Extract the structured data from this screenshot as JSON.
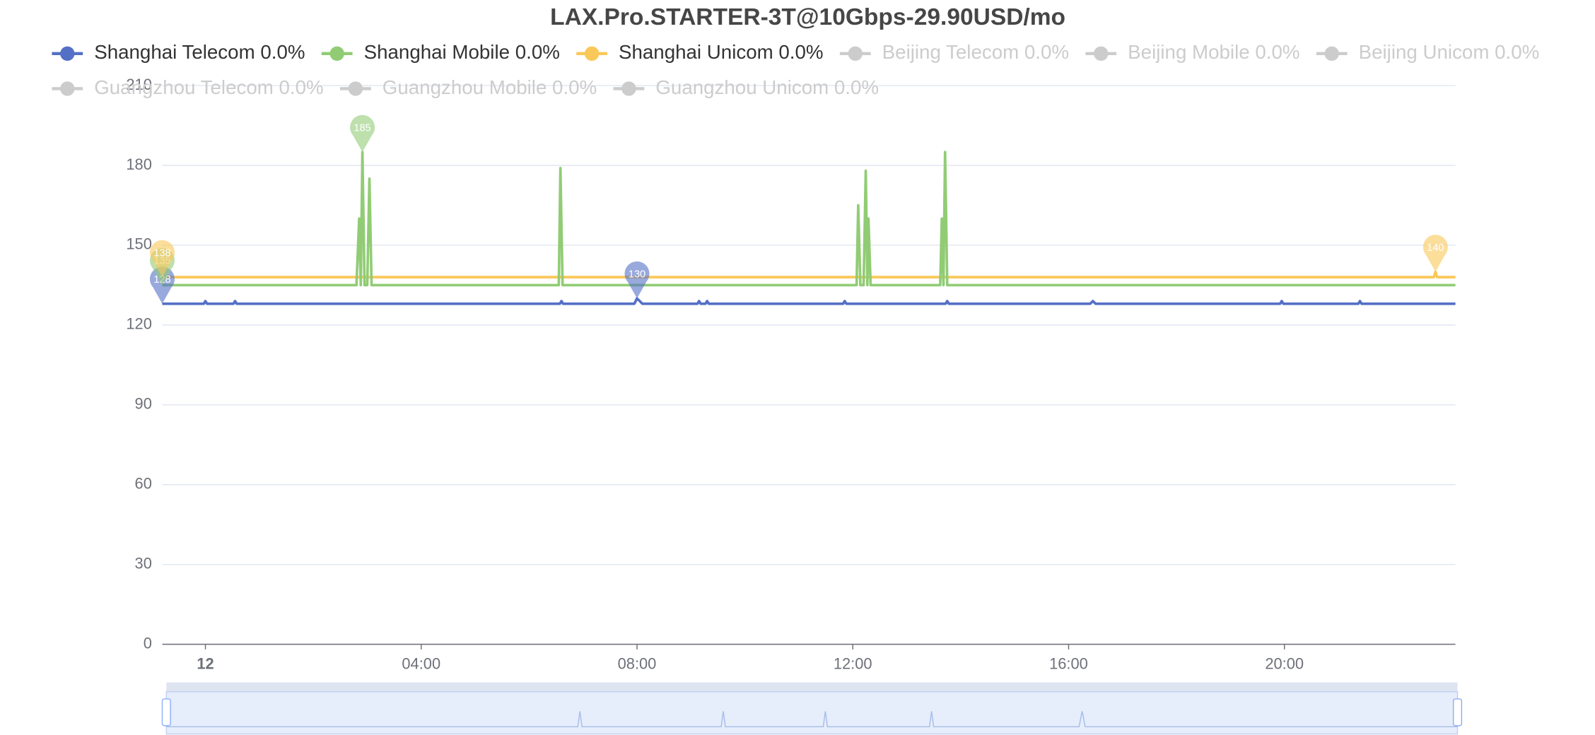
{
  "chart_data": {
    "type": "line",
    "title": "LAX.Pro.STARTER-3T@10Gbps-29.90USD/mo",
    "xlim": [
      -0.8,
      23.17
    ],
    "xticks": [
      {
        "value": 0,
        "label": "12"
      },
      {
        "value": 4,
        "label": "04:00"
      },
      {
        "value": 8,
        "label": "08:00"
      },
      {
        "value": 12,
        "label": "12:00"
      },
      {
        "value": 16,
        "label": "16:00"
      },
      {
        "value": 20,
        "label": "20:00"
      }
    ],
    "ylim": [
      0,
      210
    ],
    "yticks": [
      0,
      30,
      60,
      90,
      120,
      150,
      180,
      210
    ],
    "grid": true,
    "series": [
      {
        "name": "Shanghai Telecom 0.0%",
        "color": "#5470c6",
        "x": [
          -0.8,
          -0.03,
          0,
          0.03,
          0.52,
          0.55,
          0.58,
          6.57,
          6.6,
          6.63,
          7.95,
          8.0,
          8.05,
          8.1,
          9.12,
          9.15,
          9.18,
          9.27,
          9.3,
          9.33,
          11.82,
          11.85,
          11.88,
          13.72,
          13.75,
          13.78,
          16.4,
          16.45,
          16.5,
          19.92,
          19.95,
          19.98,
          21.37,
          21.4,
          21.43,
          23.17
        ],
        "values": [
          128,
          128,
          129,
          128,
          128,
          129,
          128,
          128,
          129,
          128,
          128,
          130,
          129,
          128,
          128,
          129,
          128,
          128,
          129,
          128,
          128,
          129,
          128,
          128,
          129,
          128,
          128,
          129,
          128,
          128,
          129,
          128,
          128,
          129,
          128,
          128
        ],
        "mark_points": [
          {
            "x": -0.8,
            "value": 128
          },
          {
            "x": 8.0,
            "value": 130
          }
        ]
      },
      {
        "name": "Shanghai Mobile 0.0%",
        "color": "#91cc75",
        "x": [
          -0.8,
          2.8,
          2.85,
          2.88,
          2.91,
          2.95,
          3.0,
          3.04,
          3.08,
          6.55,
          6.58,
          6.62,
          12.07,
          12.1,
          12.14,
          12.2,
          12.24,
          12.27,
          12.29,
          12.33,
          13.62,
          13.65,
          13.68,
          13.71,
          13.75,
          23.17
        ],
        "values": [
          135,
          135,
          160,
          135,
          185,
          135,
          135,
          175,
          135,
          135,
          179,
          135,
          135,
          165,
          135,
          135,
          178,
          135,
          160,
          135,
          135,
          160,
          135,
          185,
          135,
          135
        ],
        "mark_points": [
          {
            "x": 2.91,
            "value": 185
          },
          {
            "x": -0.8,
            "value": 135
          }
        ]
      },
      {
        "name": "Shanghai Unicom 0.0%",
        "color": "#fac858",
        "x": [
          -0.8,
          22.77,
          22.8,
          22.83,
          23.17
        ],
        "values": [
          138,
          138,
          140,
          138,
          138
        ],
        "mark_points": [
          {
            "x": 22.8,
            "value": 140
          },
          {
            "x": -0.8,
            "value": 138
          }
        ]
      }
    ],
    "hidden_series": [
      "Beijing Telecom 0.0%",
      "Beijing Mobile 0.0%",
      "Beijing Unicom 0.0%",
      "Guangzhou Telecom 0.0%",
      "Guangzhou Mobile 0.0%",
      "Guangzhou Unicom 0.0%"
    ]
  }
}
